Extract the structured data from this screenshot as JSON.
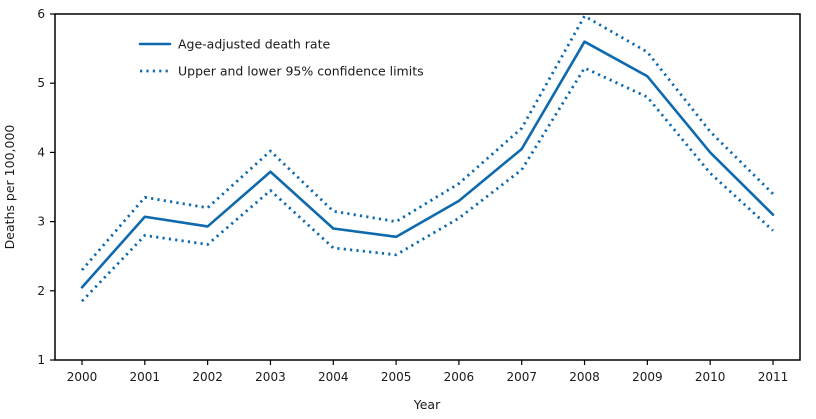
{
  "accent_color": "#0e6aad",
  "axes": {
    "y_label": "Deaths per 100,000",
    "x_label": "Year"
  },
  "legend": {
    "series1_label": "Age-adjusted death rate",
    "series2_label": "Upper and lower 95% confidence limits"
  },
  "chart_data": {
    "type": "line",
    "title": "",
    "xlabel": "Year",
    "ylabel": "Deaths per 100,000",
    "categories": [
      2000,
      2001,
      2002,
      2003,
      2004,
      2005,
      2006,
      2007,
      2008,
      2009,
      2010,
      2011
    ],
    "ylim": [
      1,
      6
    ],
    "yticks": [
      1,
      2,
      3,
      4,
      5,
      6
    ],
    "grid": false,
    "legend_position": "upper-left",
    "series": [
      {
        "name": "Age-adjusted death rate",
        "style": "solid",
        "values": [
          2.05,
          3.07,
          2.93,
          3.72,
          2.9,
          2.78,
          3.3,
          4.05,
          5.6,
          5.1,
          4.0,
          3.1
        ]
      },
      {
        "name": "Upper 95% confidence limit",
        "style": "dotted",
        "values": [
          2.3,
          3.35,
          3.2,
          4.02,
          3.15,
          3.0,
          3.55,
          4.35,
          5.97,
          5.45,
          4.3,
          3.4
        ]
      },
      {
        "name": "Lower 95% confidence limit",
        "style": "dotted",
        "values": [
          1.85,
          2.8,
          2.67,
          3.45,
          2.62,
          2.52,
          3.05,
          3.75,
          5.22,
          4.8,
          3.7,
          2.87
        ]
      }
    ]
  }
}
